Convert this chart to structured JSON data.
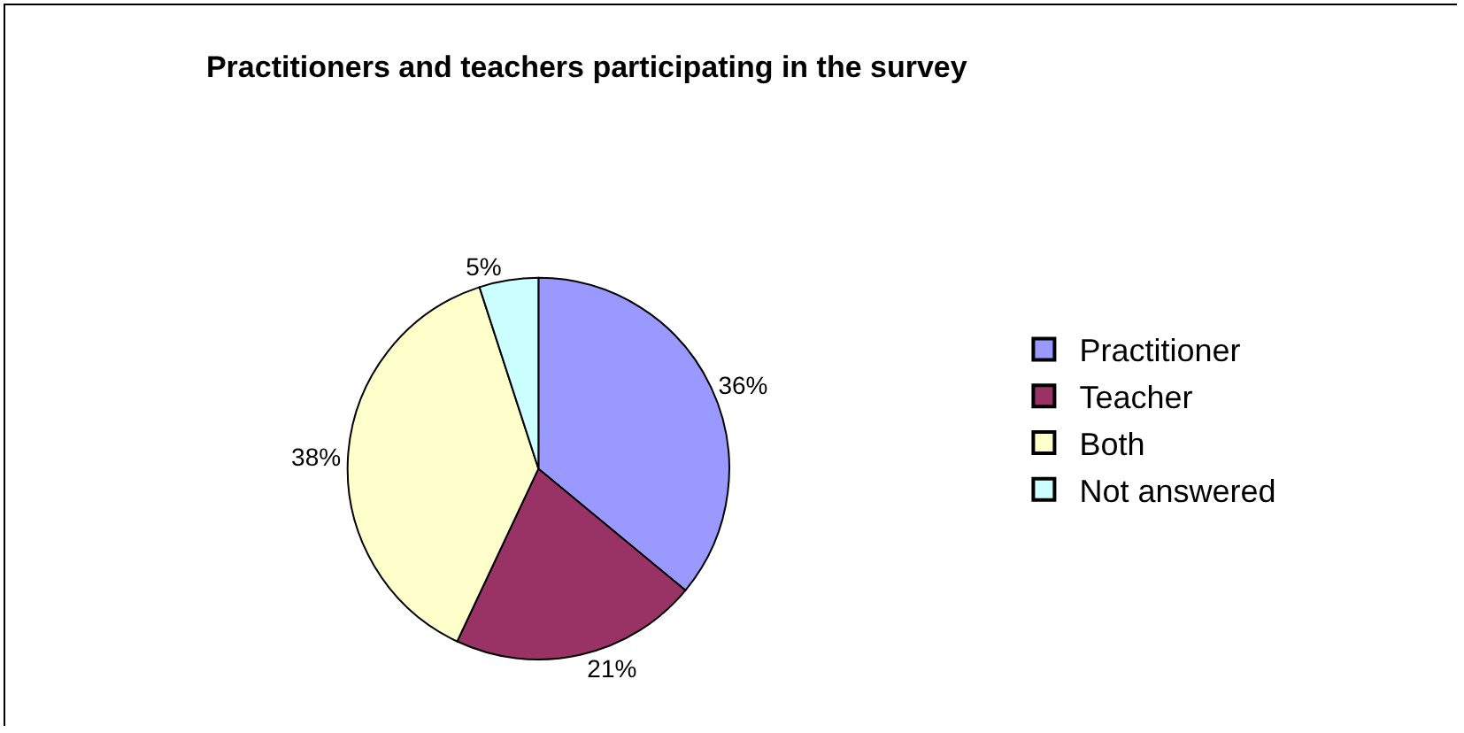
{
  "chart_data": {
    "type": "pie",
    "title": "Practitioners and teachers participating in the survey",
    "categories": [
      "Practitioner",
      "Teacher",
      "Both",
      "Not answered"
    ],
    "values": [
      36,
      21,
      38,
      5
    ],
    "colors": [
      "#9999ff",
      "#993366",
      "#ffffcc",
      "#ccffff"
    ],
    "value_labels": [
      "36%",
      "21%",
      "38%",
      "5%"
    ],
    "legend": "right"
  }
}
